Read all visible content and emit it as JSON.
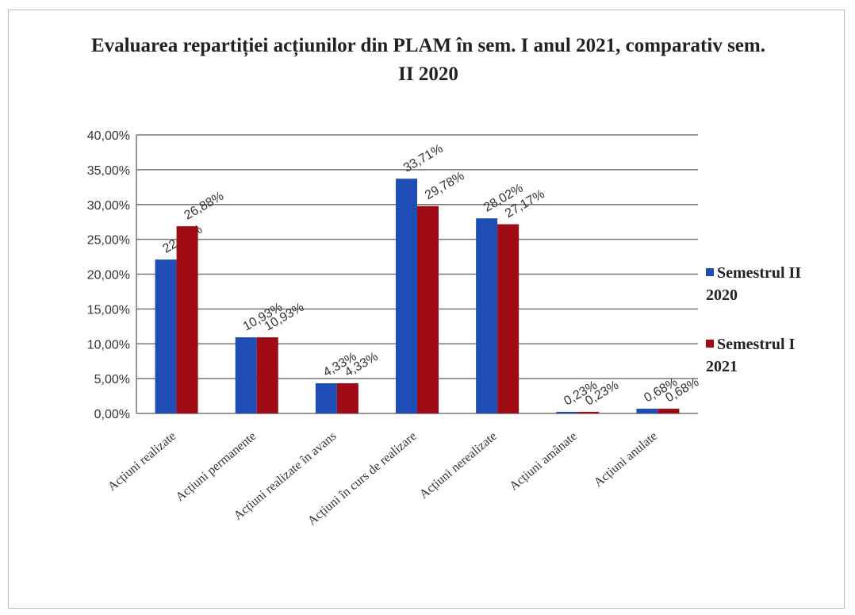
{
  "chart_data": {
    "type": "bar",
    "title": "Evaluarea repartiției acțiunilor din PLAM în sem. I anul 2021, comparativ sem. II 2020",
    "categories": [
      "Acțiuni realizate",
      "Acțiuni permanente",
      "Acțiuni realizate în avans",
      "Acțiuni în curs de realizare",
      "Acțiuni nerealizate",
      "Acțiuni amânate",
      "Acțiuni anulate"
    ],
    "series": [
      {
        "name": "Semestrul II 2020",
        "color": "#1f4db5",
        "values": [
          22.1,
          10.93,
          4.33,
          33.71,
          28.02,
          0.23,
          0.68
        ],
        "value_labels": [
          "22,10%",
          "10,93%",
          "4,33%",
          "33,71%",
          "28,02%",
          "0,23%",
          "0,68%"
        ]
      },
      {
        "name": "Semestrul I 2021",
        "color": "#9e0b14",
        "values": [
          26.88,
          10.93,
          4.33,
          29.78,
          27.17,
          0.23,
          0.68
        ],
        "value_labels": [
          "26,88%",
          "10,93%",
          "4,33%",
          "29,78%",
          "27,17%",
          "0,23%",
          "0,68%"
        ]
      }
    ],
    "ylim": [
      0,
      40
    ],
    "yticks": [
      {
        "value": 0,
        "label": "0,00%"
      },
      {
        "value": 5,
        "label": "5,00%"
      },
      {
        "value": 10,
        "label": "10,00%"
      },
      {
        "value": 15,
        "label": "15,00%"
      },
      {
        "value": 20,
        "label": "20,00%"
      },
      {
        "value": 25,
        "label": "25,00%"
      },
      {
        "value": 30,
        "label": "30,00%"
      },
      {
        "value": 35,
        "label": "35,00%"
      },
      {
        "value": 40,
        "label": "40,00%"
      }
    ],
    "grid": true,
    "legend": "right"
  }
}
